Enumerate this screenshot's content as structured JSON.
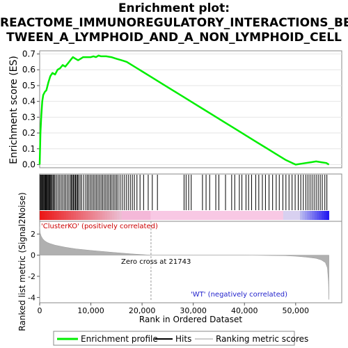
{
  "title_lines": [
    "Enrichment plot:",
    "REACTOME_IMMUNOREGULATORY_INTERACTIONS_BE",
    "TWEEN_A_LYMPHOID_AND_A_NON_LYMPHOID_CELL"
  ],
  "chart_data": [
    {
      "type": "line",
      "panel": "enrichment-score",
      "ylabel": "Enrichment score (ES)",
      "ylim": [
        -0.02,
        0.72
      ],
      "xlim": [
        0,
        59000
      ],
      "yticks": [
        "0.0",
        "0.1",
        "0.2",
        "0.3",
        "0.4",
        "0.5",
        "0.6",
        "0.7"
      ],
      "grid": true,
      "series": [
        {
          "name": "Enrichment profile",
          "color": "#00ee00",
          "x": [
            0,
            150,
            300,
            500,
            700,
            1000,
            1300,
            1700,
            2100,
            2500,
            3000,
            3500,
            4000,
            4500,
            5000,
            5500,
            6000,
            6500,
            7000,
            7500,
            8000,
            8500,
            9000,
            9500,
            10000,
            10500,
            11000,
            11500,
            12000,
            13000,
            14000,
            15000,
            16000,
            17000,
            18000,
            19000,
            20000,
            22000,
            24000,
            26000,
            28000,
            30000,
            32000,
            34000,
            36000,
            38000,
            40000,
            42000,
            44000,
            46000,
            48000,
            50000,
            51000,
            52000,
            53000,
            54000,
            55000,
            56000,
            56500
          ],
          "y": [
            0.0,
            0.2,
            0.3,
            0.4,
            0.44,
            0.46,
            0.47,
            0.52,
            0.56,
            0.58,
            0.57,
            0.6,
            0.61,
            0.63,
            0.62,
            0.64,
            0.66,
            0.68,
            0.67,
            0.66,
            0.67,
            0.68,
            0.68,
            0.68,
            0.68,
            0.685,
            0.68,
            0.69,
            0.685,
            0.685,
            0.68,
            0.67,
            0.66,
            0.65,
            0.63,
            0.61,
            0.59,
            0.55,
            0.51,
            0.47,
            0.43,
            0.39,
            0.35,
            0.31,
            0.27,
            0.23,
            0.19,
            0.15,
            0.11,
            0.07,
            0.03,
            0.0,
            0.005,
            0.01,
            0.015,
            0.02,
            0.015,
            0.01,
            0.0
          ]
        }
      ]
    },
    {
      "type": "scatter",
      "panel": "hits",
      "hit_ranks": [
        100,
        250,
        400,
        550,
        700,
        850,
        1000,
        1150,
        1300,
        1450,
        1600,
        1750,
        1900,
        2050,
        2200,
        2400,
        2600,
        2800,
        3000,
        3300,
        3600,
        3900,
        4200,
        4500,
        4800,
        5100,
        5400,
        5700,
        6000,
        6200,
        6400,
        6600,
        6800,
        7000,
        7200,
        7400,
        7600,
        7900,
        8200,
        8600,
        9000,
        9300,
        9600,
        9900,
        10200,
        10500,
        10800,
        11100,
        11400,
        11700,
        12000,
        12300,
        12600,
        12900,
        13200,
        13500,
        13800,
        14100,
        14400,
        14700,
        15000,
        15300,
        15700,
        16100,
        16500,
        16900,
        17300,
        17700,
        18100,
        18500,
        19000,
        19600,
        20300,
        21200,
        22000,
        23000,
        28200,
        28600,
        29100,
        29600,
        31800,
        32500,
        33200,
        34400,
        35000,
        36300,
        37500,
        38100,
        39000,
        39500,
        40300,
        40800,
        41400,
        42200,
        42800,
        43500,
        44100,
        44800,
        45500,
        46200,
        46800,
        47500,
        48100,
        48700,
        49300,
        49900,
        50500,
        51000,
        51500,
        52000,
        52400,
        52800,
        53200,
        53600,
        54000,
        54400,
        54800,
        55200,
        55700,
        56100
      ]
    },
    {
      "type": "area",
      "panel": "ranked-list-metric",
      "ylabel": "Ranked list metric (Signal2Noise)",
      "xlabel": "Rank in Ordered Dataset",
      "ylim": [
        -4.5,
        3.2
      ],
      "xlim": [
        0,
        59000
      ],
      "yticks": [
        "-4",
        "-2",
        "0",
        "2"
      ],
      "xticks": [
        "0",
        "10,000",
        "20,000",
        "30,000",
        "40,000",
        "50,000"
      ],
      "x": [
        0,
        100,
        300,
        600,
        1000,
        1500,
        2000,
        3000,
        4000,
        5000,
        7000,
        10000,
        14000,
        18000,
        21743,
        30000,
        40000,
        48000,
        50000,
        52000,
        54000,
        55000,
        55800,
        56200,
        56400,
        56500
      ],
      "y": [
        2.7,
        2.1,
        1.8,
        1.55,
        1.35,
        1.2,
        1.1,
        0.95,
        0.85,
        0.75,
        0.6,
        0.45,
        0.28,
        0.12,
        0.0,
        0.0,
        0.0,
        -0.05,
        -0.1,
        -0.18,
        -0.3,
        -0.45,
        -0.7,
        -1.2,
        -2.5,
        -4.2
      ],
      "annotations": {
        "zero_cross": "Zero cross at 21743",
        "zero_cross_rank": 21743,
        "positive_label": "'ClusterKO' (positively correlated)",
        "negative_label": "'WT' (negatively correlated)"
      },
      "colors": {
        "fill": "#b0b0b0",
        "positive_text": "#cc0000",
        "negative_text": "#2222cc"
      }
    }
  ],
  "legend": [
    {
      "label": "Enrichment profile",
      "color": "#00ee00"
    },
    {
      "label": "Hits",
      "color": "#000000"
    },
    {
      "label": "Ranking metric scores",
      "color": "#cccccc"
    }
  ]
}
